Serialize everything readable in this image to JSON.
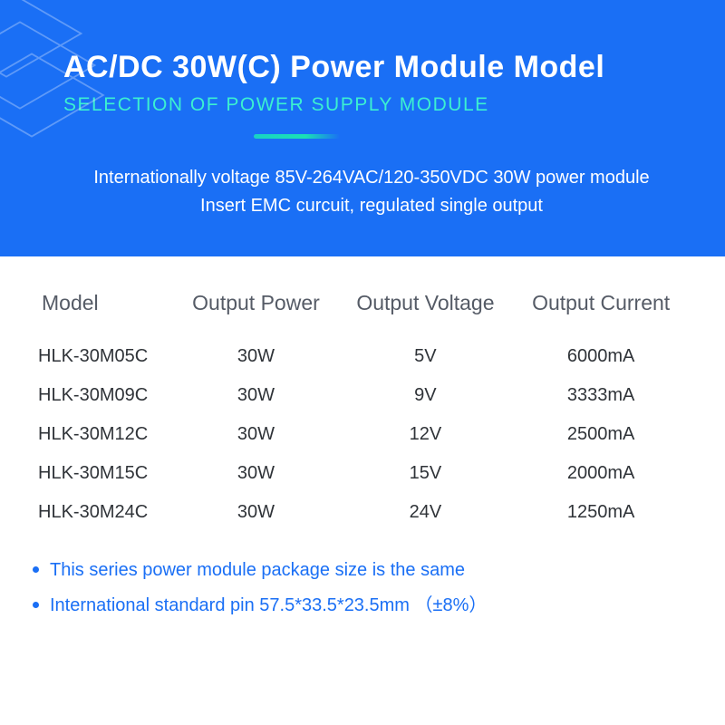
{
  "hero": {
    "title": "AC/DC 30W(C) Power Module Model",
    "subtitle": "SELECTION OF POWER SUPPLY MODULE",
    "desc_line1": "Internationally voltage 85V-264VAC/120-350VDC 30W power module",
    "desc_line2": "Insert EMC curcuit, regulated single output",
    "background_color": "#1a6ff5",
    "title_color": "#ffffff",
    "title_fontsize": 34,
    "subtitle_color": "#3bf0d1",
    "subtitle_fontsize": 21,
    "desc_color": "#ffffff",
    "desc_fontsize": 20,
    "divider_gradient": [
      "#19d2c4",
      "#1ae0b5"
    ]
  },
  "table": {
    "type": "table",
    "columns": [
      "Model",
      "Output Power",
      "Output Voltage",
      "Output Current"
    ],
    "column_align": [
      "left",
      "center",
      "center",
      "center"
    ],
    "header_fontsize": 23,
    "header_color": "#555b66",
    "cell_fontsize": 20,
    "cell_color": "#2f3338",
    "rows": [
      [
        "HLK-30M05C",
        "30W",
        "5V",
        "6000mA"
      ],
      [
        "HLK-30M09C",
        "30W",
        "9V",
        "3333mA"
      ],
      [
        "HLK-30M12C",
        "30W",
        "12V",
        "2500mA"
      ],
      [
        "HLK-30M15C",
        "30W",
        "15V",
        "2000mA"
      ],
      [
        "HLK-30M24C",
        "30W",
        "24V",
        "1250mA"
      ]
    ]
  },
  "notes": {
    "bullet_color": "#1a6ff5",
    "text_color": "#1a6ff5",
    "text_fontsize": 20,
    "items": [
      "This series power module package size is the same",
      "International standard pin 57.5*33.5*23.5mm （±8%）"
    ]
  }
}
